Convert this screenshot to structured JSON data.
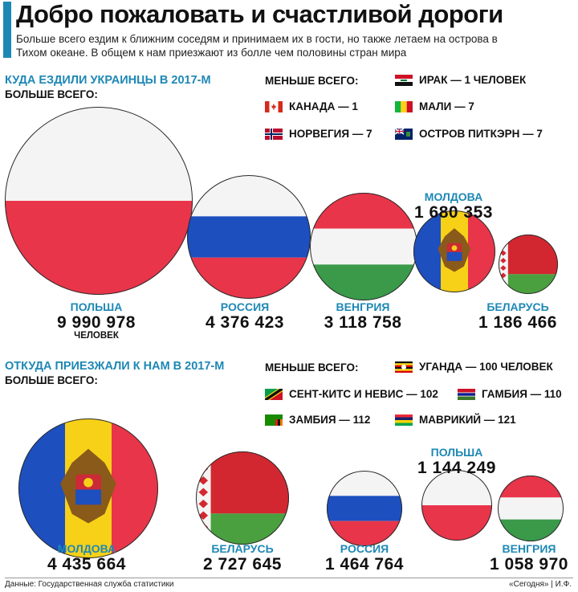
{
  "title": "Добро пожаловать и счастливой дороги",
  "subtitle": "Больше всего ездим к ближним соседям и принимаем их в гости, но также летаем на острова в Тихом океане. В общем к нам приезжают из болле чем половины стран мира",
  "colors": {
    "accent": "#1e88b5"
  },
  "sections": [
    {
      "heading": "КУДА ЕЗДИЛИ УКРАИНЦЫ В 2017-М",
      "most_label": "БОЛЬШЕ ВСЕГО:",
      "least_label": "МЕНЬШЕ ВСЕГО:",
      "least": [
        {
          "text": "ИРАК — 1 ЧЕЛОВЕК",
          "flag": "iraq-flag"
        },
        {
          "text": "КАНАДА — 1",
          "flag": "canada-flag"
        },
        {
          "text": "МАЛИ — 7",
          "flag": "mali-flag"
        },
        {
          "text": "НОРВЕГИЯ — 7",
          "flag": "norway-flag"
        },
        {
          "text": "ОСТРОВ ПИТКЭРН — 7",
          "flag": "pitcairn-flag"
        }
      ]
    },
    {
      "heading": "ОТКУДА ПРИЕЗЖАЛИ К НАМ В 2017-М",
      "most_label": "БОЛЬШЕ ВСЕГО:",
      "least_label": "МЕНЬШЕ ВСЕГО:",
      "least": [
        {
          "text": "УГАНДА — 100 ЧЕЛОВЕК",
          "flag": "uganda-flag"
        },
        {
          "text": "СЕНТ-КИТС И НЕВИС — 102",
          "flag": "saint-kitts-flag"
        },
        {
          "text": "ГАМБИЯ — 110",
          "flag": "gambia-flag"
        },
        {
          "text": "ЗАМБИЯ — 112",
          "flag": "zambia-flag"
        },
        {
          "text": "МАВРИКИЙ — 121",
          "flag": "mauritius-flag"
        }
      ]
    }
  ],
  "chart_data": [
    {
      "type": "bubble",
      "title": "КУДА ЕЗДИЛИ УКРАИНЦЫ В 2017-М",
      "unit": "ЧЕЛОВЕК",
      "categories": [
        "ПОЛЬША",
        "РОССИЯ",
        "ВЕНГРИЯ",
        "МОЛДОВА",
        "БЕЛАРУСЬ"
      ],
      "values": [
        9990978,
        4376423,
        3118758,
        1680353,
        1186466
      ],
      "labels": [
        "9 990 978",
        "4 376 423",
        "3 118 758",
        "1 680 353",
        "1 186 466"
      ],
      "flags": [
        "poland",
        "russia",
        "hungary",
        "moldova",
        "belarus"
      ]
    },
    {
      "type": "bubble",
      "title": "ОТКУДА ПРИЕЗЖАЛИ К НАМ В 2017-М",
      "categories": [
        "МОЛДОВА",
        "БЕЛАРУСЬ",
        "РОССИЯ",
        "ПОЛЬША",
        "ВЕНГРИЯ"
      ],
      "values": [
        4435664,
        2727645,
        1464764,
        1144249,
        1058970
      ],
      "labels": [
        "4 435 664",
        "2 727 645",
        "1 464 764",
        "1 144 249",
        "1 058 970"
      ],
      "flags": [
        "moldova",
        "belarus",
        "russia",
        "poland",
        "hungary"
      ]
    }
  ],
  "footer": {
    "source": "Данные: Государственная служба статистики",
    "credit": "«Сегодня» | И.Ф."
  }
}
